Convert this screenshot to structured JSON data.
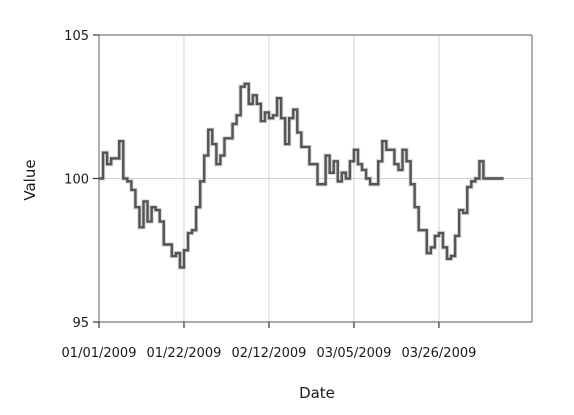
{
  "chart_data": {
    "type": "line",
    "step": true,
    "xlabel": "Date",
    "ylabel": "Value",
    "ylim": [
      95,
      105
    ],
    "xlim": [
      "2009-01-01",
      "2009-04-18"
    ],
    "y_ticks": [
      95,
      100,
      105
    ],
    "x_ticks": [
      {
        "date": "2009-01-01",
        "label": "01/01/2009"
      },
      {
        "date": "2009-01-22",
        "label": "01/22/2009"
      },
      {
        "date": "2009-02-12",
        "label": "02/12/2009"
      },
      {
        "date": "2009-03-05",
        "label": "03/05/2009"
      },
      {
        "date": "2009-03-26",
        "label": "03/26/2009"
      }
    ],
    "grid": true,
    "colors": {
      "series": "#555555",
      "series_edge": "#d6d6d6",
      "grid": "#d3d3d3",
      "axis": "#7a7a7a"
    },
    "series": [
      {
        "x": [
          "2009-01-01",
          "2009-01-02",
          "2009-01-03",
          "2009-01-04",
          "2009-01-05",
          "2009-01-06",
          "2009-01-07",
          "2009-01-08",
          "2009-01-09",
          "2009-01-10",
          "2009-01-11",
          "2009-01-12",
          "2009-01-13",
          "2009-01-14",
          "2009-01-15",
          "2009-01-16",
          "2009-01-17",
          "2009-01-18",
          "2009-01-19",
          "2009-01-20",
          "2009-01-21",
          "2009-01-22",
          "2009-01-23",
          "2009-01-24",
          "2009-01-25",
          "2009-01-26",
          "2009-01-27",
          "2009-01-28",
          "2009-01-29",
          "2009-01-30",
          "2009-01-31",
          "2009-02-01",
          "2009-02-02",
          "2009-02-03",
          "2009-02-04",
          "2009-02-05",
          "2009-02-06",
          "2009-02-07",
          "2009-02-08",
          "2009-02-09",
          "2009-02-10",
          "2009-02-11",
          "2009-02-12",
          "2009-02-13",
          "2009-02-14",
          "2009-02-15",
          "2009-02-16",
          "2009-02-17",
          "2009-02-18",
          "2009-02-19",
          "2009-02-20",
          "2009-02-21",
          "2009-02-22",
          "2009-02-23",
          "2009-02-24",
          "2009-02-25",
          "2009-02-26",
          "2009-02-27",
          "2009-02-28",
          "2009-03-01",
          "2009-03-02",
          "2009-03-03",
          "2009-03-04",
          "2009-03-05",
          "2009-03-06",
          "2009-03-07",
          "2009-03-08",
          "2009-03-09",
          "2009-03-10",
          "2009-03-11",
          "2009-03-12",
          "2009-03-13",
          "2009-03-14",
          "2009-03-15",
          "2009-03-16",
          "2009-03-17",
          "2009-03-18",
          "2009-03-19",
          "2009-03-20",
          "2009-03-21",
          "2009-03-22",
          "2009-03-23",
          "2009-03-24",
          "2009-03-25",
          "2009-03-26",
          "2009-03-27",
          "2009-03-28",
          "2009-03-29",
          "2009-03-30",
          "2009-03-31",
          "2009-04-01",
          "2009-04-02",
          "2009-04-03",
          "2009-04-04",
          "2009-04-05",
          "2009-04-06",
          "2009-04-07",
          "2009-04-08",
          "2009-04-09",
          "2009-04-10"
        ],
        "values": [
          100.0,
          100.9,
          100.5,
          100.7,
          100.7,
          101.3,
          100.0,
          99.9,
          99.6,
          99.0,
          98.3,
          99.2,
          98.5,
          99.0,
          98.9,
          98.5,
          97.7,
          97.7,
          97.3,
          97.4,
          96.9,
          97.5,
          98.1,
          98.2,
          99.0,
          99.9,
          100.8,
          101.7,
          101.2,
          100.5,
          100.8,
          101.4,
          101.4,
          101.9,
          102.2,
          103.2,
          103.3,
          102.6,
          102.9,
          102.6,
          102.0,
          102.3,
          102.1,
          102.2,
          102.8,
          102.1,
          101.2,
          102.1,
          102.4,
          101.6,
          101.1,
          101.1,
          100.5,
          100.5,
          99.8,
          99.8,
          100.8,
          100.2,
          100.6,
          99.9,
          100.2,
          100.0,
          100.6,
          101.0,
          100.5,
          100.3,
          100.0,
          99.8,
          99.8,
          100.6,
          101.3,
          101.0,
          101.0,
          100.5,
          100.3,
          101.0,
          100.6,
          99.8,
          99.0,
          98.2,
          98.2,
          97.4,
          97.6,
          98.0,
          98.1,
          97.6,
          97.2,
          97.3,
          98.0,
          98.9,
          98.8,
          99.7,
          99.9,
          100.0,
          100.6,
          100.0,
          100.0,
          100.0,
          100.0,
          100.0
        ]
      }
    ]
  }
}
